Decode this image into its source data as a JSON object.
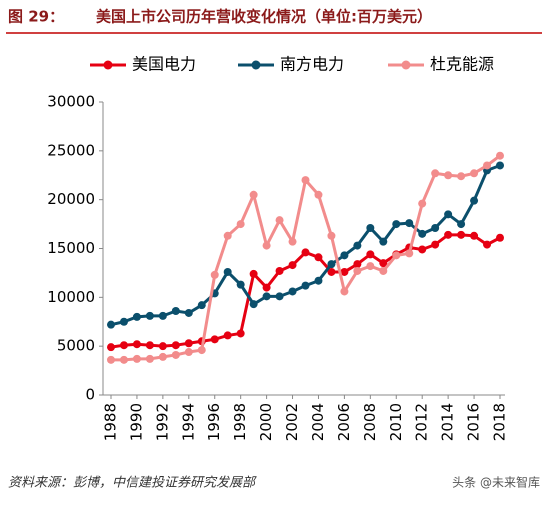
{
  "chart_data": {
    "type": "line",
    "title_label": "图 29：",
    "title": "美国上市公司历年营收变化情况（单位:百万美元）",
    "source": "资料来源：彭博，中信建投证券研究发展部",
    "watermark": "头条 @未来智库",
    "x": [
      1988,
      1989,
      1990,
      1991,
      1992,
      1993,
      1994,
      1995,
      1996,
      1997,
      1998,
      1999,
      2000,
      2001,
      2002,
      2003,
      2004,
      2005,
      2006,
      2007,
      2008,
      2009,
      2010,
      2011,
      2012,
      2013,
      2014,
      2015,
      2016,
      2017,
      2018
    ],
    "xlim": [
      1988,
      2018
    ],
    "xticks": [
      1988,
      1990,
      1992,
      1994,
      1996,
      1998,
      2000,
      2002,
      2004,
      2006,
      2008,
      2010,
      2012,
      2014,
      2016,
      2018
    ],
    "ylim": [
      0,
      30000
    ],
    "yticks": [
      0,
      5000,
      10000,
      15000,
      20000,
      25000,
      30000
    ],
    "legend": "top",
    "series": [
      {
        "name": "美国电力",
        "color": "#e60012",
        "values": [
          4900,
          5100,
          5200,
          5100,
          5000,
          5100,
          5300,
          5500,
          5700,
          6100,
          6300,
          12400,
          11000,
          12700,
          13300,
          14600,
          14100,
          12600,
          12600,
          13400,
          14400,
          13500,
          14400,
          15100,
          14900,
          15400,
          16400,
          16400,
          16300,
          15400,
          16100
        ]
      },
      {
        "name": "南方电力",
        "color": "#0b4f6c",
        "values": [
          7200,
          7500,
          8000,
          8100,
          8100,
          8600,
          8400,
          9200,
          10400,
          12600,
          11300,
          9300,
          10100,
          10100,
          10600,
          11200,
          11700,
          13400,
          14300,
          15300,
          17100,
          15700,
          17500,
          17600,
          16500,
          17100,
          18500,
          17500,
          19900,
          23000,
          23500
        ]
      },
      {
        "name": "杜克能源",
        "color": "#f28c8c",
        "values": [
          3600,
          3600,
          3700,
          3700,
          3900,
          4100,
          4400,
          4600,
          12300,
          16300,
          17500,
          20500,
          15300,
          17900,
          15700,
          22000,
          20500,
          16300,
          10600,
          12700,
          13200,
          12700,
          14300,
          14500,
          19600,
          22700,
          22500,
          22400,
          22700,
          23500,
          24500
        ]
      }
    ]
  }
}
